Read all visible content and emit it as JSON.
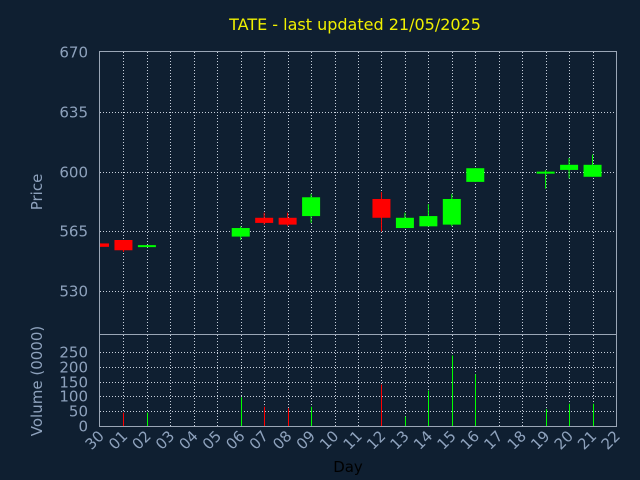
{
  "chart_data": [
    {
      "type": "candlestick",
      "title": "TATE - last updated 21/05/2025",
      "ylabel": "Price",
      "ylim": [
        505,
        670
      ],
      "yticks": [
        530,
        565,
        600,
        635,
        670
      ],
      "grid": true,
      "up_color": "#00ff00",
      "down_color": "#ff0000",
      "categories": [
        "30",
        "01",
        "02",
        "03",
        "04",
        "05",
        "06",
        "07",
        "08",
        "09",
        "10",
        "11",
        "12",
        "13",
        "14",
        "15",
        "16",
        "17",
        "18",
        "19",
        "20",
        "21",
        "22"
      ],
      "candles": [
        {
          "x": "30",
          "open": 558,
          "high": 558,
          "low": 556,
          "close": 556
        },
        {
          "x": "01",
          "open": 560,
          "high": 560,
          "low": 553,
          "close": 554
        },
        {
          "x": "02",
          "open": 556,
          "high": 557,
          "low": 556,
          "close": 557
        },
        {
          "x": "06",
          "open": 562,
          "high": 568,
          "low": 560,
          "close": 567
        },
        {
          "x": "07",
          "open": 573,
          "high": 576,
          "low": 569,
          "close": 570
        },
        {
          "x": "08",
          "open": 573,
          "high": 576,
          "low": 568,
          "close": 569
        },
        {
          "x": "09",
          "open": 574,
          "high": 587,
          "low": 570,
          "close": 585
        },
        {
          "x": "12",
          "open": 584,
          "high": 588,
          "low": 565,
          "close": 573
        },
        {
          "x": "13",
          "open": 567,
          "high": 576,
          "low": 567,
          "close": 573
        },
        {
          "x": "14",
          "open": 568,
          "high": 581,
          "low": 568,
          "close": 574
        },
        {
          "x": "15",
          "open": 569,
          "high": 587,
          "low": 568,
          "close": 584
        },
        {
          "x": "16",
          "open": 594,
          "high": 602,
          "low": 594,
          "close": 602
        },
        {
          "x": "19",
          "open": 599,
          "high": 601,
          "low": 590,
          "close": 600
        },
        {
          "x": "20",
          "open": 601,
          "high": 608,
          "low": 596,
          "close": 604
        },
        {
          "x": "21",
          "open": 597,
          "high": 610,
          "low": 597,
          "close": 604
        }
      ]
    },
    {
      "type": "bar",
      "ylabel": "Volume (0000)",
      "xlabel": "Day",
      "ylim": [
        0,
        250
      ],
      "yticks": [
        0,
        50,
        100,
        150,
        200,
        250
      ],
      "grid": true,
      "categories": [
        "30",
        "01",
        "02",
        "03",
        "04",
        "05",
        "06",
        "07",
        "08",
        "09",
        "10",
        "11",
        "12",
        "13",
        "14",
        "15",
        "16",
        "17",
        "18",
        "19",
        "20",
        "21",
        "22"
      ],
      "bars": [
        {
          "x": "01",
          "value": 45,
          "direction": "down"
        },
        {
          "x": "02",
          "value": 45,
          "direction": "up"
        },
        {
          "x": "06",
          "value": 97,
          "direction": "up"
        },
        {
          "x": "07",
          "value": 65,
          "direction": "down"
        },
        {
          "x": "08",
          "value": 60,
          "direction": "down"
        },
        {
          "x": "09",
          "value": 65,
          "direction": "up"
        },
        {
          "x": "12",
          "value": 140,
          "direction": "down"
        },
        {
          "x": "13",
          "value": 32,
          "direction": "up"
        },
        {
          "x": "14",
          "value": 120,
          "direction": "up"
        },
        {
          "x": "15",
          "value": 238,
          "direction": "up"
        },
        {
          "x": "16",
          "value": 175,
          "direction": "up"
        },
        {
          "x": "19",
          "value": 57,
          "direction": "up"
        },
        {
          "x": "20",
          "value": 75,
          "direction": "up"
        },
        {
          "x": "21",
          "value": 75,
          "direction": "up"
        }
      ]
    }
  ]
}
